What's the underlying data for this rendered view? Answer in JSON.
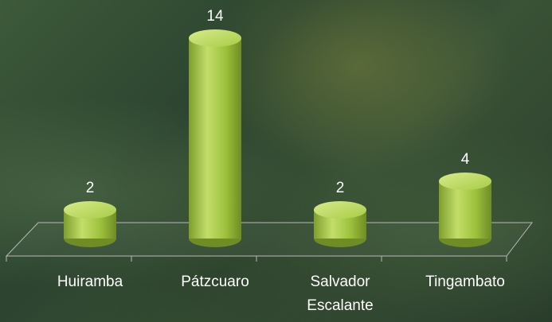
{
  "chart_data": {
    "type": "bar",
    "categories": [
      "Huiramba",
      "Pátzcuaro",
      "Salvador Escalante",
      "Tingambato"
    ],
    "values": [
      2,
      14,
      2,
      4
    ],
    "color": "#9dc13c"
  }
}
